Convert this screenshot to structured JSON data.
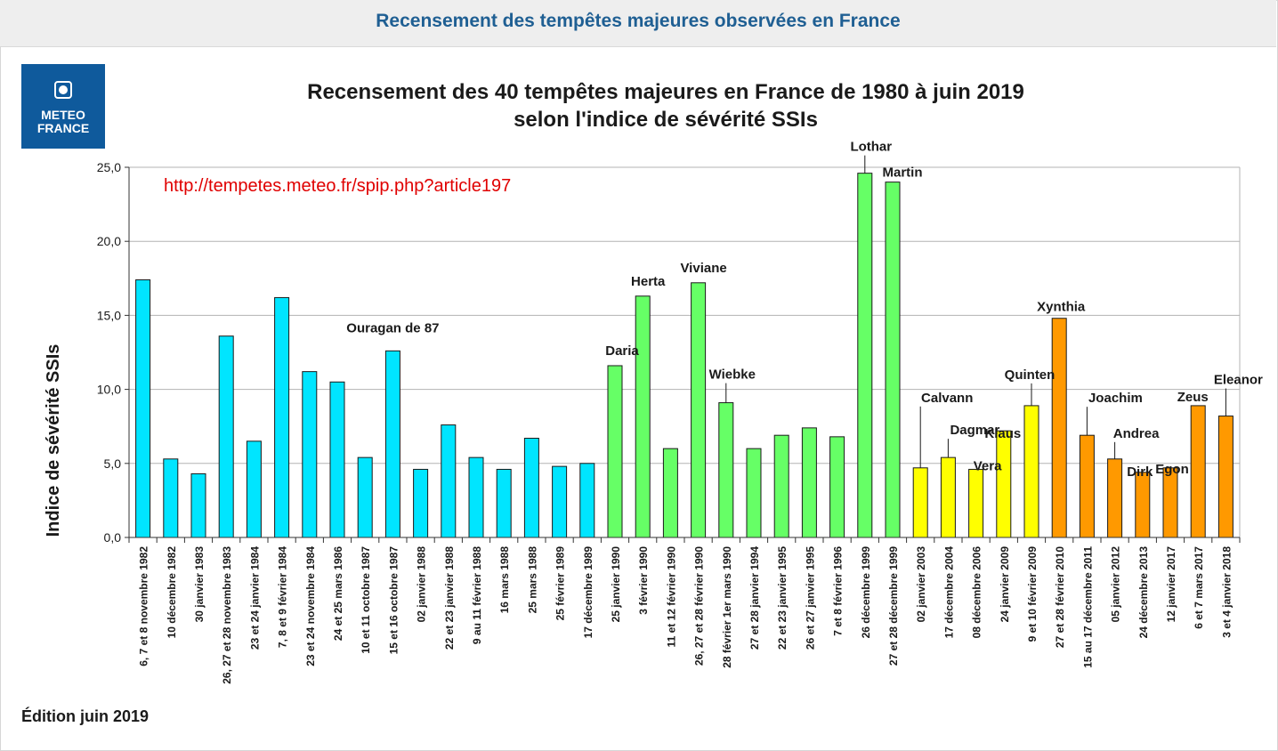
{
  "page": {
    "header_title": "Recensement des tempêtes majeures observées en France",
    "logo": {
      "line1": "METEO",
      "line2": "FRANCE",
      "color": "#0f5a9c"
    },
    "edition": "Édition juin 2019"
  },
  "chart_data": {
    "type": "bar",
    "title_line1": "Recensement des 40 tempêtes majeures en France de 1980 à juin 2019",
    "title_line2": "selon l'indice de sévérité SSIs",
    "annotation_url": "http://tempetes.meteo.fr/spip.php?article197",
    "ylabel": "Indice de sévérité SSIs",
    "xlabel": "",
    "ylim": [
      0,
      25
    ],
    "yticks": [
      "0,0",
      "5,0",
      "10,0",
      "15,0",
      "20,0",
      "25,0"
    ],
    "grid": true,
    "colors": {
      "1980s": "#00e5ff",
      "1990s": "#66ff66",
      "2000s": "#ffff00",
      "2010s": "#ff9900"
    },
    "categories": [
      "6, 7 et 8 novembre 1982",
      "10 décembre 1982",
      "30 janvier 1983",
      "26, 27 et 28 novembre 1983",
      "23 et 24 janvier 1984",
      "7, 8 et 9 février 1984",
      "23 et 24 novembre 1984",
      "24 et 25 mars 1986",
      "10 et 11 octobre 1987",
      "15 et 16 octobre 1987",
      "02 janvier 1988",
      "22 et 23 janvier 1988",
      "9 au 11 février 1988",
      "16 mars 1988",
      "25 mars 1988",
      "25 février 1989",
      "17 décembre 1989",
      "25 janvier 1990",
      "3 février 1990",
      "11 et 12 février 1990",
      "26, 27 et 28 février 1990",
      "28 février 1er mars 1990",
      "27 et 28 janvier 1994",
      "22 et 23 janvier 1995",
      "26 et 27 janvier 1995",
      "7 et 8 février 1996",
      "26 décembre 1999",
      "27 et 28 décembre 1999",
      "02 janvier 2003",
      "17 décembre 2004",
      "08 décembre 2006",
      "24 janvier 2009",
      "9 et 10 février 2009",
      "27 et 28 février 2010",
      "15 au 17 décembre 2011",
      "05 janvier 2012",
      "24 décembre 2013",
      "12 janvier 2017",
      "6 et 7 mars 2017",
      "3 et 4 janvier 2018"
    ],
    "values": [
      17.4,
      5.3,
      4.3,
      13.6,
      6.5,
      16.2,
      11.2,
      10.5,
      5.4,
      12.6,
      4.6,
      7.6,
      5.4,
      4.6,
      6.7,
      4.8,
      5.0,
      11.6,
      16.3,
      6.0,
      17.2,
      9.1,
      6.0,
      6.9,
      7.4,
      6.8,
      24.6,
      24.0,
      4.7,
      5.4,
      4.6,
      7.2,
      8.9,
      14.8,
      6.9,
      5.3,
      4.4,
      4.7,
      8.9,
      8.2
    ],
    "decade": [
      "1980s",
      "1980s",
      "1980s",
      "1980s",
      "1980s",
      "1980s",
      "1980s",
      "1980s",
      "1980s",
      "1980s",
      "1980s",
      "1980s",
      "1980s",
      "1980s",
      "1980s",
      "1980s",
      "1980s",
      "1990s",
      "1990s",
      "1990s",
      "1990s",
      "1990s",
      "1990s",
      "1990s",
      "1990s",
      "1990s",
      "1990s",
      "1990s",
      "2000s",
      "2000s",
      "2000s",
      "2000s",
      "2000s",
      "2010s",
      "2010s",
      "2010s",
      "2010s",
      "2010s",
      "2010s",
      "2010s"
    ],
    "storm_names": [
      "",
      "",
      "",
      "",
      "",
      "",
      "",
      "",
      "",
      "Ouragan de 87",
      "",
      "",
      "",
      "",
      "",
      "",
      "",
      "Daria",
      "Herta",
      "",
      "Viviane",
      "Wiebke",
      "",
      "",
      "",
      "",
      "Lothar",
      "Martin",
      "Calvann",
      "Dagmar",
      "Vera",
      "Klaus",
      "Quinten",
      "Xynthia",
      "Joachim",
      "Andrea",
      "Dirk",
      "Egon",
      "Zeus",
      "Eleanor"
    ]
  }
}
